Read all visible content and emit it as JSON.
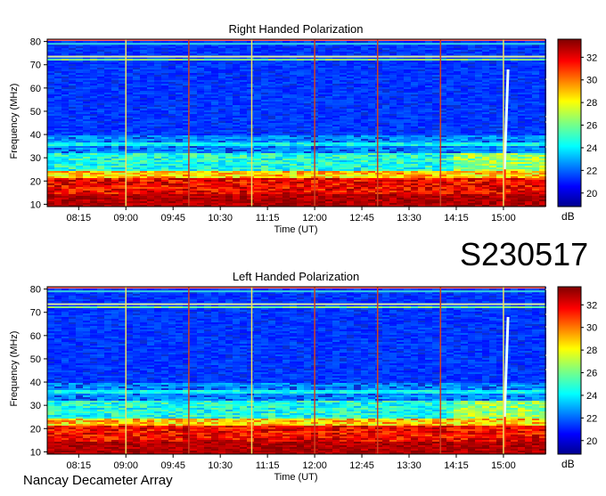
{
  "figure": {
    "event_id": "S230517",
    "footer": "Nancay Decameter Array"
  },
  "chart_data": [
    {
      "type": "heatmap",
      "title": "Right Handed Polarization",
      "xlabel": "Time (UT)",
      "ylabel": "Frequency (MHz)",
      "x_ticks": [
        "08:15",
        "09:00",
        "09:45",
        "10:30",
        "11:15",
        "12:00",
        "12:45",
        "13:30",
        "14:15",
        "15:00"
      ],
      "x_tick_minutes": [
        495,
        540,
        585,
        630,
        675,
        720,
        765,
        810,
        855,
        900
      ],
      "xlim_minutes": [
        465,
        940
      ],
      "y_ticks": [
        10,
        20,
        30,
        40,
        50,
        60,
        70,
        80
      ],
      "ylim": [
        9,
        81
      ],
      "colorbar": {
        "label": "dB",
        "ticks": [
          20,
          22,
          24,
          26,
          28,
          30,
          32
        ],
        "range": [
          18.8,
          33.6
        ],
        "colormap": "jet"
      },
      "time_markers": [
        "09:00",
        "10:00",
        "11:00",
        "12:00",
        "13:00",
        "14:00",
        "15:00"
      ],
      "interference_lines_mhz": [
        73.5,
        79
      ],
      "strong_band_mhz": [
        12,
        22
      ],
      "burst": {
        "time": "15:01",
        "freq_range_mhz": [
          25,
          68
        ]
      }
    },
    {
      "type": "heatmap",
      "title": "Left Handed Polarization",
      "xlabel": "Time (UT)",
      "ylabel": "Frequency (MHz)",
      "x_ticks": [
        "08:15",
        "09:00",
        "09:45",
        "10:30",
        "11:15",
        "12:00",
        "12:45",
        "13:30",
        "14:15",
        "15:00"
      ],
      "x_tick_minutes": [
        495,
        540,
        585,
        630,
        675,
        720,
        765,
        810,
        855,
        900
      ],
      "xlim_minutes": [
        465,
        940
      ],
      "y_ticks": [
        10,
        20,
        30,
        40,
        50,
        60,
        70,
        80
      ],
      "ylim": [
        9,
        81
      ],
      "colorbar": {
        "label": "dB",
        "ticks": [
          20,
          22,
          24,
          26,
          28,
          30,
          32
        ],
        "range": [
          18.8,
          33.6
        ],
        "colormap": "jet"
      },
      "time_markers": [
        "09:00",
        "10:00",
        "11:00",
        "12:00",
        "13:00",
        "14:00",
        "15:00"
      ],
      "interference_lines_mhz": [
        73.5,
        79
      ],
      "strong_band_mhz": [
        12,
        22
      ],
      "burst": {
        "time": "15:01",
        "freq_range_mhz": [
          25,
          68
        ]
      }
    }
  ]
}
